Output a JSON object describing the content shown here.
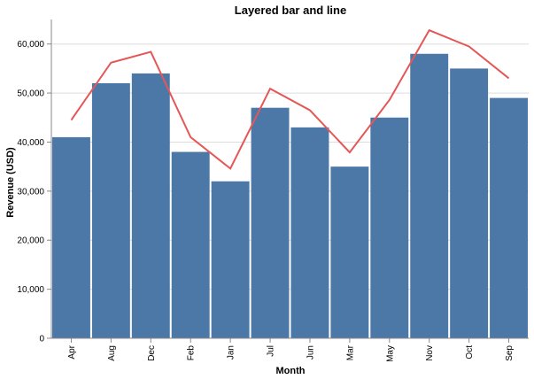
{
  "chart_data": {
    "type": "bar",
    "title": "Layered bar and line",
    "xlabel": "Month",
    "ylabel": "Revenue (USD)",
    "categories": [
      "Apr",
      "Aug",
      "Dec",
      "Feb",
      "Jan",
      "Jul",
      "Jun",
      "Mar",
      "May",
      "Nov",
      "Oct",
      "Sep"
    ],
    "ylim": [
      0,
      65000
    ],
    "yticks": [
      0,
      10000,
      20000,
      30000,
      40000,
      50000,
      60000
    ],
    "ytick_labels": [
      "0",
      "10,000",
      "20,000",
      "30,000",
      "40,000",
      "50,000",
      "60,000"
    ],
    "grid": true,
    "series": [
      {
        "type": "bar",
        "color": "#4c78a8",
        "values": [
          41000,
          52000,
          54000,
          38000,
          32000,
          47000,
          43000,
          35000,
          45000,
          58000,
          55000,
          49000
        ]
      },
      {
        "type": "line",
        "color": "#e45756",
        "values": [
          44500,
          56200,
          58400,
          41000,
          34600,
          50900,
          46500,
          37900,
          48600,
          62800,
          59500,
          53000
        ]
      }
    ]
  }
}
